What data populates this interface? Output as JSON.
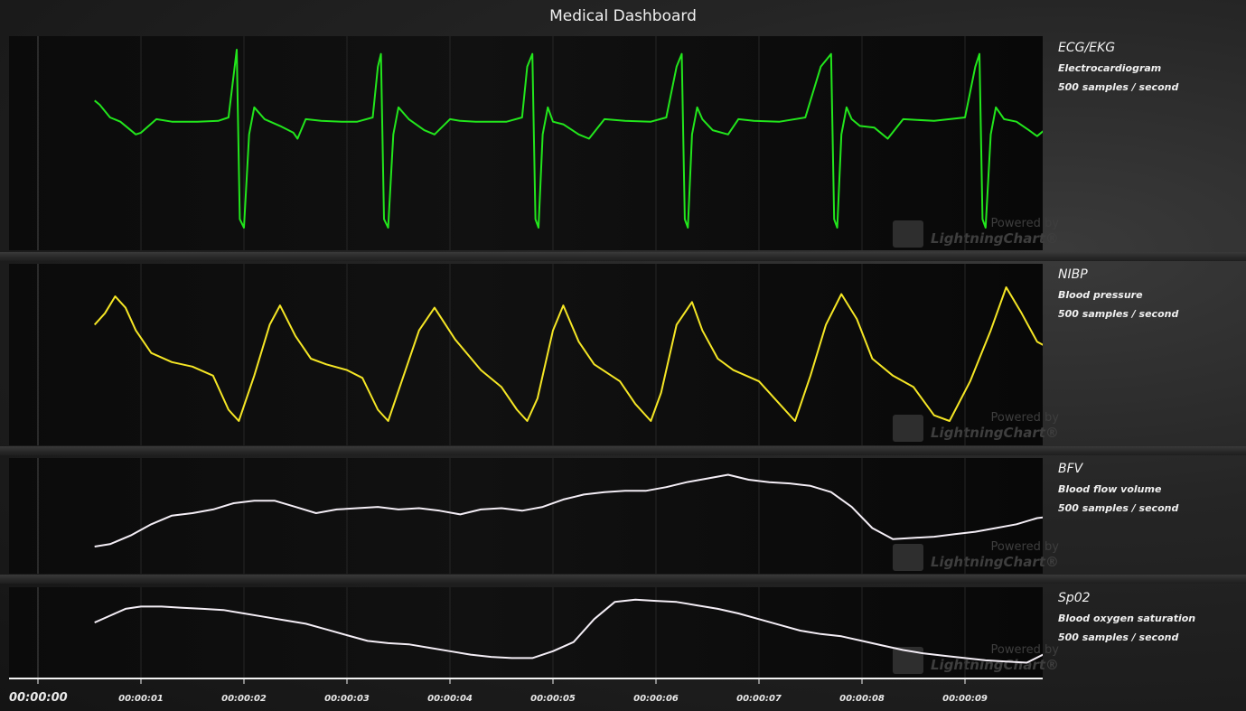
{
  "title": "Medical Dashboard",
  "channels": [
    {
      "name": "ECG/EKG",
      "description": "Electrocardiogram",
      "rate": "500 samples / second",
      "color": "#22e61c"
    },
    {
      "name": "NIBP",
      "description": "Blood pressure",
      "rate": "500 samples / second",
      "color": "#f5e625"
    },
    {
      "name": "BFV",
      "description": "Blood flow volume",
      "rate": "500 samples / second",
      "color": "#f4eef6"
    },
    {
      "name": "Sp02",
      "description": "Blood oxygen saturation",
      "rate": "500 samples / second",
      "color": "#f4eef6"
    }
  ],
  "watermark": {
    "line1": "Powered by",
    "line2": "LightningChart®",
    "icon": "lightningchart-js-logo"
  },
  "chart_data": {
    "type": "line",
    "x_axis": {
      "tick_labels": [
        "00:00:00",
        "00:00:01",
        "00:00:02",
        "00:00:03",
        "00:00:04",
        "00:00:05",
        "00:00:06",
        "00:00:07",
        "00:00:08",
        "00:00:09"
      ],
      "range_seconds": [
        0,
        9.8
      ]
    },
    "series": [
      {
        "name": "ECG/EKG",
        "x": [
          0.55,
          0.6,
          0.7,
          0.8,
          0.95,
          1.0,
          1.15,
          1.3,
          1.55,
          1.75,
          1.85,
          1.9,
          1.93,
          1.96,
          2.0,
          2.05,
          2.1,
          2.2,
          2.35,
          2.48,
          2.52,
          2.6,
          2.75,
          2.95,
          3.1,
          3.25,
          3.3,
          3.33,
          3.36,
          3.4,
          3.45,
          3.5,
          3.6,
          3.75,
          3.85,
          4.0,
          4.1,
          4.25,
          4.55,
          4.7,
          4.75,
          4.8,
          4.83,
          4.86,
          4.9,
          4.95,
          5.0,
          5.1,
          5.25,
          5.35,
          5.5,
          5.7,
          5.95,
          6.1,
          6.2,
          6.25,
          6.28,
          6.31,
          6.35,
          6.4,
          6.45,
          6.55,
          6.7,
          6.8,
          6.95,
          7.2,
          7.45,
          7.6,
          7.7,
          7.73,
          7.76,
          7.8,
          7.85,
          7.9,
          7.98,
          8.12,
          8.25,
          8.4,
          8.7,
          9.0,
          9.1,
          9.14,
          9.17,
          9.2,
          9.25,
          9.3,
          9.38,
          9.5,
          9.62,
          9.7,
          9.8
        ],
        "y": [
          0.5,
          0.45,
          0.3,
          0.25,
          0.1,
          0.12,
          0.28,
          0.25,
          0.25,
          0.26,
          0.3,
          0.8,
          1.1,
          -0.9,
          -1.0,
          0.1,
          0.42,
          0.28,
          0.2,
          0.12,
          0.05,
          0.28,
          0.26,
          0.25,
          0.25,
          0.3,
          0.9,
          1.05,
          -0.9,
          -1.0,
          0.1,
          0.42,
          0.28,
          0.15,
          0.1,
          0.28,
          0.26,
          0.25,
          0.25,
          0.3,
          0.9,
          1.05,
          -0.9,
          -1.0,
          0.1,
          0.42,
          0.25,
          0.22,
          0.1,
          0.05,
          0.28,
          0.26,
          0.25,
          0.3,
          0.9,
          1.05,
          -0.9,
          -1.0,
          0.1,
          0.42,
          0.28,
          0.15,
          0.1,
          0.28,
          0.26,
          0.25,
          0.3,
          0.9,
          1.05,
          -0.9,
          -1.0,
          0.1,
          0.42,
          0.28,
          0.2,
          0.18,
          0.05,
          0.28,
          0.26,
          0.3,
          0.9,
          1.05,
          -0.9,
          -1.0,
          0.1,
          0.42,
          0.28,
          0.25,
          0.15,
          0.08,
          0.18
        ]
      },
      {
        "name": "NIBP",
        "x": [
          0.55,
          0.65,
          0.75,
          0.85,
          0.95,
          1.1,
          1.3,
          1.5,
          1.7,
          1.85,
          1.95,
          2.1,
          2.25,
          2.35,
          2.5,
          2.65,
          2.8,
          3.0,
          3.15,
          3.3,
          3.4,
          3.55,
          3.7,
          3.85,
          4.05,
          4.3,
          4.5,
          4.65,
          4.75,
          4.85,
          5.0,
          5.1,
          5.25,
          5.4,
          5.65,
          5.8,
          5.95,
          6.05,
          6.2,
          6.35,
          6.45,
          6.6,
          6.75,
          7.0,
          7.2,
          7.35,
          7.5,
          7.65,
          7.8,
          7.95,
          8.1,
          8.3,
          8.5,
          8.7,
          8.85,
          9.05,
          9.25,
          9.4,
          9.55,
          9.7,
          9.8
        ],
        "y": [
          0.55,
          0.65,
          0.8,
          0.7,
          0.5,
          0.3,
          0.22,
          0.18,
          0.1,
          -0.2,
          -0.3,
          0.1,
          0.55,
          0.72,
          0.45,
          0.25,
          0.2,
          0.15,
          0.08,
          -0.2,
          -0.3,
          0.1,
          0.5,
          0.7,
          0.42,
          0.15,
          0.0,
          -0.2,
          -0.3,
          -0.1,
          0.5,
          0.72,
          0.4,
          0.2,
          0.05,
          -0.15,
          -0.3,
          -0.05,
          0.55,
          0.75,
          0.5,
          0.25,
          0.15,
          0.05,
          -0.15,
          -0.3,
          0.1,
          0.55,
          0.82,
          0.6,
          0.25,
          0.1,
          0.0,
          -0.25,
          -0.3,
          0.05,
          0.5,
          0.88,
          0.65,
          0.4,
          0.35
        ]
      },
      {
        "name": "BFV",
        "x": [
          0.55,
          0.7,
          0.9,
          1.1,
          1.3,
          1.5,
          1.7,
          1.9,
          2.1,
          2.3,
          2.5,
          2.7,
          2.9,
          3.1,
          3.3,
          3.5,
          3.7,
          3.9,
          4.1,
          4.3,
          4.5,
          4.7,
          4.9,
          5.1,
          5.3,
          5.5,
          5.7,
          5.9,
          6.1,
          6.3,
          6.5,
          6.7,
          6.9,
          7.1,
          7.3,
          7.5,
          7.7,
          7.9,
          8.1,
          8.3,
          8.5,
          8.7,
          8.9,
          9.1,
          9.3,
          9.5,
          9.7,
          9.8
        ],
        "y": [
          0.18,
          0.2,
          0.27,
          0.36,
          0.43,
          0.45,
          0.48,
          0.53,
          0.55,
          0.55,
          0.5,
          0.45,
          0.48,
          0.49,
          0.5,
          0.48,
          0.49,
          0.47,
          0.44,
          0.48,
          0.49,
          0.47,
          0.5,
          0.56,
          0.6,
          0.62,
          0.63,
          0.63,
          0.66,
          0.7,
          0.73,
          0.76,
          0.72,
          0.7,
          0.69,
          0.67,
          0.62,
          0.5,
          0.33,
          0.24,
          0.25,
          0.26,
          0.28,
          0.3,
          0.33,
          0.36,
          0.41,
          0.42
        ]
      },
      {
        "name": "Sp02",
        "x": [
          0.55,
          0.7,
          0.85,
          1.0,
          1.2,
          1.4,
          1.6,
          1.8,
          2.0,
          2.2,
          2.4,
          2.6,
          2.8,
          3.0,
          3.2,
          3.4,
          3.6,
          3.8,
          4.0,
          4.2,
          4.4,
          4.6,
          4.8,
          5.0,
          5.2,
          5.4,
          5.6,
          5.8,
          6.0,
          6.2,
          6.4,
          6.6,
          6.8,
          7.0,
          7.2,
          7.4,
          7.6,
          7.8,
          8.0,
          8.2,
          8.4,
          8.6,
          8.8,
          9.0,
          9.2,
          9.4,
          9.6,
          9.8
        ],
        "y": [
          0.52,
          0.58,
          0.64,
          0.66,
          0.66,
          0.65,
          0.64,
          0.63,
          0.6,
          0.57,
          0.54,
          0.51,
          0.46,
          0.41,
          0.36,
          0.34,
          0.33,
          0.3,
          0.27,
          0.24,
          0.22,
          0.21,
          0.21,
          0.27,
          0.35,
          0.55,
          0.7,
          0.72,
          0.71,
          0.7,
          0.67,
          0.64,
          0.6,
          0.55,
          0.5,
          0.45,
          0.42,
          0.4,
          0.36,
          0.32,
          0.28,
          0.25,
          0.23,
          0.21,
          0.19,
          0.18,
          0.17,
          0.26
        ]
      }
    ]
  }
}
